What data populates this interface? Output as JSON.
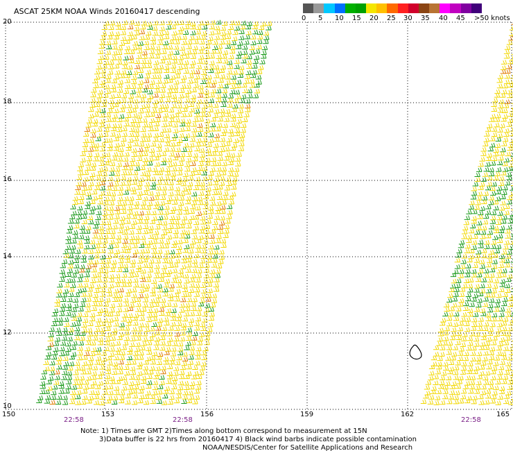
{
  "title": "ASCAT 25KM NOAA Winds 20160417 descending",
  "speed_scale": {
    "unit": "knots",
    "labels": [
      "0",
      "5",
      "10",
      "15",
      "20",
      "25",
      "30",
      "35",
      "40",
      "45",
      ">50 knots"
    ],
    "colors": [
      "#555555",
      "#999999",
      "#00c8ff",
      "#0070ff",
      "#00b000",
      "#00a000",
      "#f5e600",
      "#ffc000",
      "#ff6a00",
      "#ff2020",
      "#d0002a",
      "#8b4513",
      "#b87333",
      "#ff00ff",
      "#c000c0",
      "#8000a0",
      "#40007a"
    ]
  },
  "map": {
    "lat_labels": [
      "20",
      "18",
      "16",
      "14",
      "12",
      "10"
    ],
    "lon_labels": [
      "150",
      "153",
      "156",
      "159",
      "162",
      "165"
    ],
    "times": [
      "22:58",
      "22:58",
      "22:58"
    ]
  },
  "notes": {
    "line1": "Note: 1) Times are GMT 2)Times along bottom correspond to measurement at 15N",
    "line2": "3)Data buffer is 22 hrs from 20160417 4) Black wind barbs indicate possible contamination",
    "line3": "NOAA/NESDIS/Center for Satellite Applications and Research"
  },
  "colors": {
    "grid": "#000000",
    "time_label": "#7a1f86",
    "low_wind": "#1a9a1a",
    "mid_wind": "#f2d800",
    "high_wind": "#e07a00"
  }
}
